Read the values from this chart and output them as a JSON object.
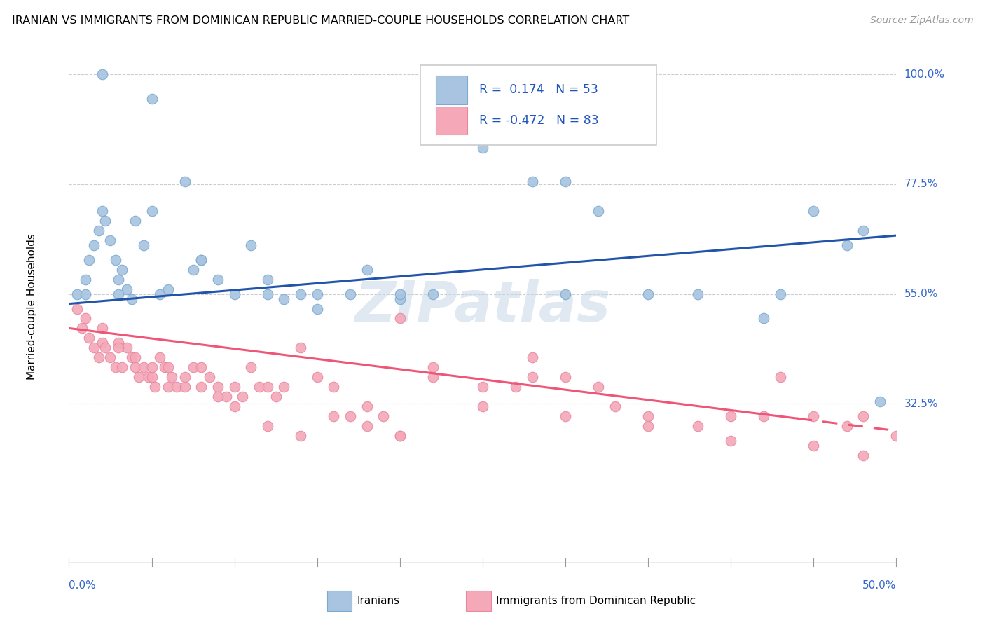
{
  "title": "IRANIAN VS IMMIGRANTS FROM DOMINICAN REPUBLIC MARRIED-COUPLE HOUSEHOLDS CORRELATION CHART",
  "source": "Source: ZipAtlas.com",
  "ylabel": "Married-couple Households",
  "blue_color": "#A8C4E0",
  "pink_color": "#F4A8B8",
  "blue_line_color": "#2255AA",
  "pink_line_color": "#EE5577",
  "watermark": "ZIPatlas",
  "blue_scatter_x": [
    0.5,
    1.0,
    1.2,
    1.5,
    1.8,
    2.0,
    2.2,
    2.5,
    2.8,
    3.0,
    3.2,
    3.5,
    3.8,
    4.0,
    4.5,
    5.0,
    5.5,
    6.0,
    7.0,
    7.5,
    8.0,
    9.0,
    10.0,
    11.0,
    12.0,
    13.0,
    14.0,
    15.0,
    17.0,
    18.0,
    20.0,
    22.0,
    25.0,
    28.0,
    30.0,
    32.0,
    35.0,
    38.0,
    42.0,
    43.0,
    45.0,
    47.0,
    48.0,
    49.0,
    30.0,
    20.0,
    15.0,
    12.0,
    8.0,
    5.0,
    3.0,
    2.0,
    1.0
  ],
  "blue_scatter_y": [
    55.0,
    58.0,
    62.0,
    65.0,
    68.0,
    72.0,
    70.0,
    66.0,
    62.0,
    58.0,
    60.0,
    56.0,
    54.0,
    70.0,
    65.0,
    72.0,
    55.0,
    56.0,
    78.0,
    60.0,
    62.0,
    58.0,
    55.0,
    65.0,
    55.0,
    54.0,
    55.0,
    52.0,
    55.0,
    60.0,
    54.0,
    55.0,
    85.0,
    78.0,
    78.0,
    72.0,
    55.0,
    55.0,
    50.0,
    55.0,
    72.0,
    65.0,
    68.0,
    33.0,
    55.0,
    55.0,
    55.0,
    58.0,
    62.0,
    95.0,
    55.0,
    100.0,
    55.0
  ],
  "pink_scatter_x": [
    0.5,
    0.8,
    1.0,
    1.2,
    1.5,
    1.8,
    2.0,
    2.2,
    2.5,
    2.8,
    3.0,
    3.2,
    3.5,
    3.8,
    4.0,
    4.2,
    4.5,
    4.8,
    5.0,
    5.2,
    5.5,
    5.8,
    6.0,
    6.2,
    6.5,
    7.0,
    7.5,
    8.0,
    8.5,
    9.0,
    9.5,
    10.0,
    10.5,
    11.0,
    11.5,
    12.0,
    12.5,
    13.0,
    14.0,
    15.0,
    16.0,
    17.0,
    18.0,
    19.0,
    20.0,
    22.0,
    25.0,
    27.0,
    28.0,
    30.0,
    32.0,
    33.0,
    35.0,
    38.0,
    40.0,
    42.0,
    43.0,
    45.0,
    47.0,
    48.0,
    2.0,
    3.0,
    4.0,
    5.0,
    6.0,
    7.0,
    8.0,
    9.0,
    10.0,
    12.0,
    14.0,
    16.0,
    18.0,
    20.0,
    22.0,
    25.0,
    28.0,
    30.0,
    35.0,
    40.0,
    45.0,
    48.0,
    50.0,
    20.0
  ],
  "pink_scatter_y": [
    52.0,
    48.0,
    50.0,
    46.0,
    44.0,
    42.0,
    45.0,
    44.0,
    42.0,
    40.0,
    45.0,
    40.0,
    44.0,
    42.0,
    40.0,
    38.0,
    40.0,
    38.0,
    38.0,
    36.0,
    42.0,
    40.0,
    36.0,
    38.0,
    36.0,
    36.0,
    40.0,
    40.0,
    38.0,
    36.0,
    34.0,
    36.0,
    34.0,
    40.0,
    36.0,
    36.0,
    34.0,
    36.0,
    44.0,
    38.0,
    36.0,
    30.0,
    32.0,
    30.0,
    50.0,
    40.0,
    36.0,
    36.0,
    38.0,
    38.0,
    36.0,
    32.0,
    30.0,
    28.0,
    30.0,
    30.0,
    38.0,
    30.0,
    28.0,
    30.0,
    48.0,
    44.0,
    42.0,
    40.0,
    40.0,
    38.0,
    36.0,
    34.0,
    32.0,
    28.0,
    26.0,
    30.0,
    28.0,
    26.0,
    38.0,
    32.0,
    42.0,
    30.0,
    28.0,
    25.0,
    24.0,
    22.0,
    26.0,
    26.0
  ],
  "xlim": [
    0.0,
    50.0
  ],
  "ylim": [
    0.0,
    105.0
  ],
  "xtick_labels": [
    "0.0%",
    "50.0%"
  ],
  "ytick_vals": [
    0.0,
    32.5,
    55.0,
    77.5,
    100.0
  ],
  "ytick_labels": [
    "",
    "32.5%",
    "55.0%",
    "77.5%",
    "100.0%"
  ],
  "blue_line_x": [
    0.0,
    50.0
  ],
  "blue_line_y_intercept": 53.0,
  "blue_line_slope": 0.28,
  "pink_line_x": [
    0.0,
    50.0
  ],
  "pink_line_y_intercept": 48.0,
  "pink_line_slope": -0.42,
  "dash_start_x": 44.0
}
